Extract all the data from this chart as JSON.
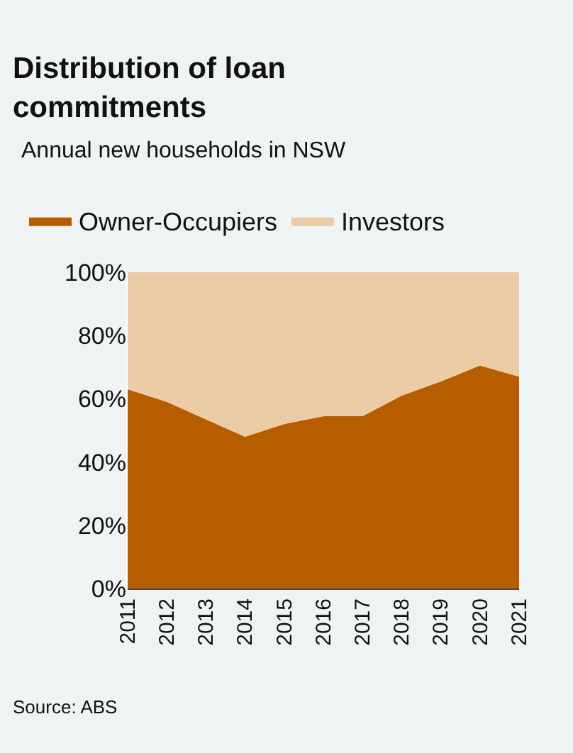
{
  "chart_data": {
    "type": "area",
    "title": "Distribution of loan commitments",
    "subtitle": "Annual new households in NSW",
    "categories": [
      "2011",
      "2012",
      "2013",
      "2014",
      "2015",
      "2016",
      "2017",
      "2018",
      "2019",
      "2020",
      "2021"
    ],
    "series": [
      {
        "name": "Owner-Occupiers",
        "color": "#b85c00",
        "values": [
          63,
          59,
          53.5,
          48,
          52,
          54.5,
          54.5,
          61,
          65.5,
          70.5,
          67
        ]
      },
      {
        "name": "Investors",
        "color": "#ebcca6",
        "values": [
          37,
          41,
          46.5,
          52,
          48,
          45.5,
          45.5,
          39,
          34.5,
          29.5,
          33
        ]
      }
    ],
    "stacked": true,
    "ylim": [
      0,
      100
    ],
    "yticks": [
      {
        "value": 0,
        "label": "0%"
      },
      {
        "value": 20,
        "label": "20%"
      },
      {
        "value": 40,
        "label": "40%"
      },
      {
        "value": 60,
        "label": "60%"
      },
      {
        "value": 80,
        "label": "80%"
      },
      {
        "value": 100,
        "label": "100%"
      }
    ],
    "legend": "top",
    "annotations": [
      "Source: ABS"
    ]
  }
}
